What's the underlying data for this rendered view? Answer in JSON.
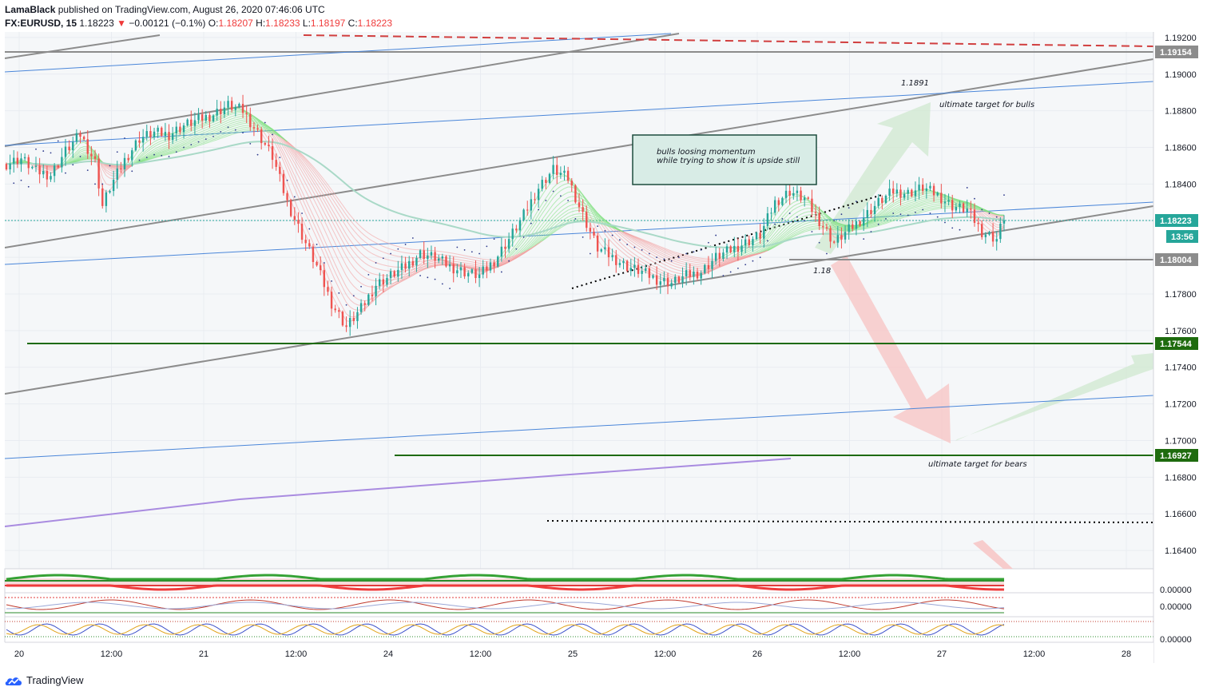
{
  "header": {
    "author": "LamaBlack",
    "published_text": "published on TradingView.com, August 26, 2020 07:46:06 UTC",
    "symbol": "FX:EURUSD, 15",
    "price": "1.18223",
    "arrow": "▼",
    "change": "−0.00121 (−0.1%)",
    "open_label": "O:",
    "open": "1.18207",
    "high_label": "H:",
    "high": "1.18233",
    "low_label": "L:",
    "low": "1.18197",
    "close_label": "C:",
    "close": "1.18223"
  },
  "footer": {
    "brand": "TradingView"
  },
  "colors": {
    "bull": "#26a69a",
    "bear": "#ef5350",
    "green_line": "#1e6b0e",
    "trend_gray": "#8c8c8c",
    "trend_blue": "#4a86d9",
    "purple": "#a98be0"
  },
  "annotations": {
    "bull_target_level": "1.1891",
    "bull_target": "ultimate target for bulls",
    "bear_target": "ultimate target for bears",
    "support_level": "1.18",
    "note_line1": "bulls loosing momentum",
    "note_line2": "while trying to show it is upside still"
  },
  "price_tags": {
    "top_gray": "1.19154",
    "current": "1.18223",
    "countdown": "13:56",
    "support_gray": "1.18004",
    "green1": "1.17544",
    "green2": "1.16927"
  },
  "osc_labels": [
    "0.00000",
    "0.00000",
    "0.00000"
  ],
  "chart_data": {
    "type": "line",
    "title": "",
    "xlabel": "",
    "ylabel": "",
    "x_ticks": [
      "20",
      "12:00",
      "21",
      "12:00",
      "24",
      "12:00",
      "25",
      "12:00",
      "26",
      "12:00",
      "27",
      "12:00",
      "28"
    ],
    "y_ticks": [
      "1.19200",
      "1.19000",
      "1.18800",
      "1.18600",
      "1.18400",
      "1.18200",
      "1.18000",
      "1.17800",
      "1.17600",
      "1.17400",
      "1.17200",
      "1.17000",
      "1.16800",
      "1.16600",
      "1.16400"
    ],
    "ylim": [
      1.163,
      1.1923
    ],
    "grid": true,
    "series": [
      {
        "x": [
          0,
          4,
          8,
          12,
          16,
          20,
          24,
          26,
          28,
          32,
          36,
          40,
          44,
          48,
          52,
          56,
          60,
          64,
          68,
          72,
          76,
          80,
          84,
          88,
          92,
          96,
          100,
          104,
          108,
          112,
          116,
          120,
          124,
          128,
          132,
          136,
          140,
          144,
          148,
          152,
          156,
          160,
          164,
          168,
          172,
          176,
          180,
          184,
          188,
          192,
          196,
          200,
          204,
          208,
          212,
          216,
          220,
          224,
          228,
          232,
          236,
          240,
          244,
          248,
          252,
          256,
          260,
          264,
          268,
          270
        ],
        "values": [
          1.1851,
          1.1854,
          1.1847,
          1.1845,
          1.1858,
          1.1867,
          1.1852,
          1.1828,
          1.1838,
          1.1853,
          1.1865,
          1.1868,
          1.1867,
          1.1872,
          1.1875,
          1.1878,
          1.1883,
          1.188,
          1.1868,
          1.1855,
          1.183,
          1.1812,
          1.1795,
          1.1775,
          1.1762,
          1.1772,
          1.1785,
          1.179,
          1.1795,
          1.1802,
          1.18,
          1.1795,
          1.1792,
          1.179,
          1.1798,
          1.181,
          1.1823,
          1.1838,
          1.1848,
          1.1843,
          1.1823,
          1.1805,
          1.18,
          1.1795,
          1.1792,
          1.1788,
          1.1786,
          1.179,
          1.1792,
          1.18,
          1.1804,
          1.1808,
          1.1812,
          1.183,
          1.1836,
          1.1832,
          1.182,
          1.1808,
          1.1815,
          1.1822,
          1.183,
          1.1836,
          1.1835,
          1.1838,
          1.1834,
          1.1828,
          1.1826,
          1.1814,
          1.181,
          1.1822
        ]
      }
    ]
  }
}
